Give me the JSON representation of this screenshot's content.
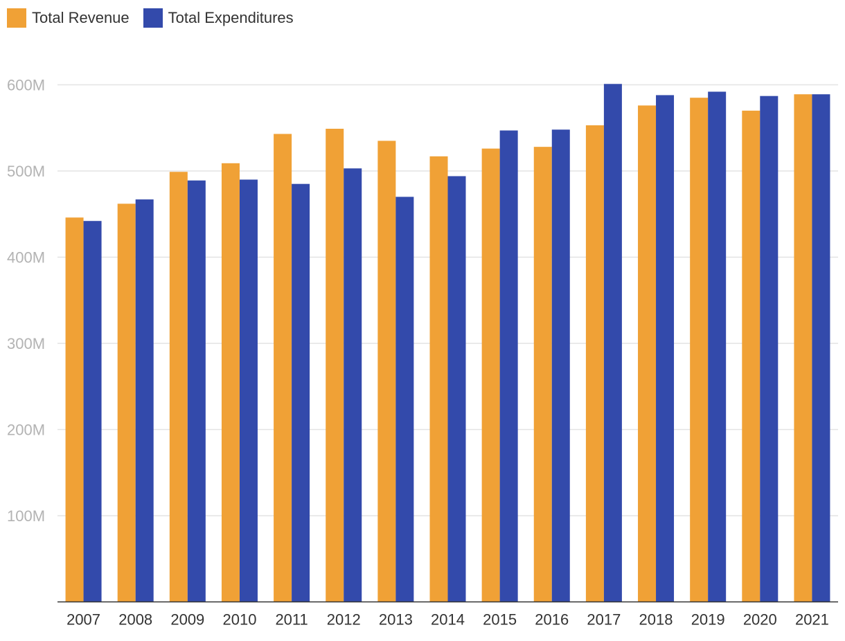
{
  "chart_data": {
    "type": "bar",
    "title": "",
    "xlabel": "",
    "ylabel": "",
    "ylim": [
      0,
      600000000
    ],
    "categories": [
      "2007",
      "2008",
      "2009",
      "2010",
      "2011",
      "2012",
      "2013",
      "2014",
      "2015",
      "2016",
      "2017",
      "2018",
      "2019",
      "2020",
      "2021"
    ],
    "series": [
      {
        "name": "Total Revenue",
        "color": "#f0a136",
        "values": [
          446000000,
          462000000,
          499000000,
          509000000,
          543000000,
          549000000,
          535000000,
          517000000,
          526000000,
          528000000,
          553000000,
          576000000,
          585000000,
          570000000,
          589000000
        ]
      },
      {
        "name": "Total Expenditures",
        "color": "#334aab",
        "values": [
          442000000,
          467000000,
          489000000,
          490000000,
          485000000,
          503000000,
          470000000,
          494000000,
          547000000,
          548000000,
          601000000,
          588000000,
          592000000,
          587000000,
          589000000
        ]
      }
    ],
    "yticks": [
      {
        "value": 100000000,
        "label": "100M"
      },
      {
        "value": 200000000,
        "label": "200M"
      },
      {
        "value": 300000000,
        "label": "300M"
      },
      {
        "value": 400000000,
        "label": "400M"
      },
      {
        "value": 500000000,
        "label": "500M"
      },
      {
        "value": 600000000,
        "label": "600M"
      }
    ],
    "legend_position": "top-left",
    "grid": true
  }
}
